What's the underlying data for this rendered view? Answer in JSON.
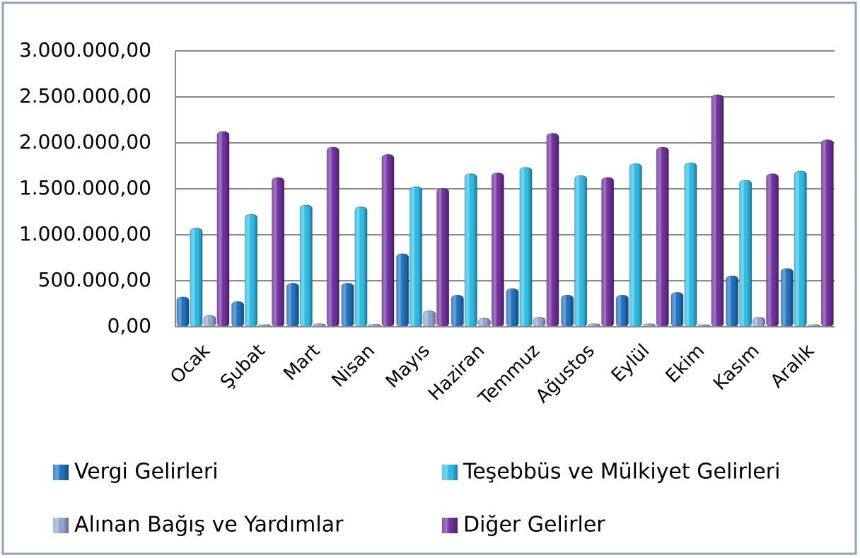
{
  "chart_data": {
    "type": "bar",
    "categories": [
      "Ocak",
      "Şubat",
      "Mart",
      "Nisan",
      "Mayıs",
      "Haziran",
      "Temmuz",
      "Ağustos",
      "Eylül",
      "Ekim",
      "Kasım",
      "Aralık"
    ],
    "series": [
      {
        "name": "Vergi Gelirleri",
        "color": "#1e74c6",
        "values": [
          300000,
          250000,
          450000,
          450000,
          770000,
          320000,
          390000,
          320000,
          320000,
          350000,
          530000,
          610000
        ]
      },
      {
        "name": "Teşebbüs ve Mülkiyet Gelirleri",
        "color": "#2cc3ef",
        "values": [
          1050000,
          1200000,
          1300000,
          1280000,
          1500000,
          1640000,
          1710000,
          1620000,
          1750000,
          1760000,
          1570000,
          1670000
        ]
      },
      {
        "name": "Alınan Bağış ve Yardımlar",
        "color": "#93abd9",
        "values": [
          100000,
          0,
          10000,
          5000,
          150000,
          70000,
          80000,
          10000,
          10000,
          0,
          80000,
          0
        ]
      },
      {
        "name": "Diğer Gelirler",
        "color": "#7330a3",
        "values": [
          2100000,
          1600000,
          1930000,
          1850000,
          1480000,
          1650000,
          2080000,
          1600000,
          1930000,
          2500000,
          1640000,
          2010000
        ]
      }
    ],
    "ylim": [
      0,
      3000000
    ],
    "yticks": [
      {
        "value": 0,
        "label": "0,00"
      },
      {
        "value": 500000,
        "label": "500.000,00"
      },
      {
        "value": 1000000,
        "label": "1.000.000,00"
      },
      {
        "value": 1500000,
        "label": "1.500.000,00"
      },
      {
        "value": 2000000,
        "label": "2.000.000,00"
      },
      {
        "value": 2500000,
        "label": "2.500.000,00"
      },
      {
        "value": 3000000,
        "label": "3.000.000,00"
      }
    ],
    "grid": true
  }
}
